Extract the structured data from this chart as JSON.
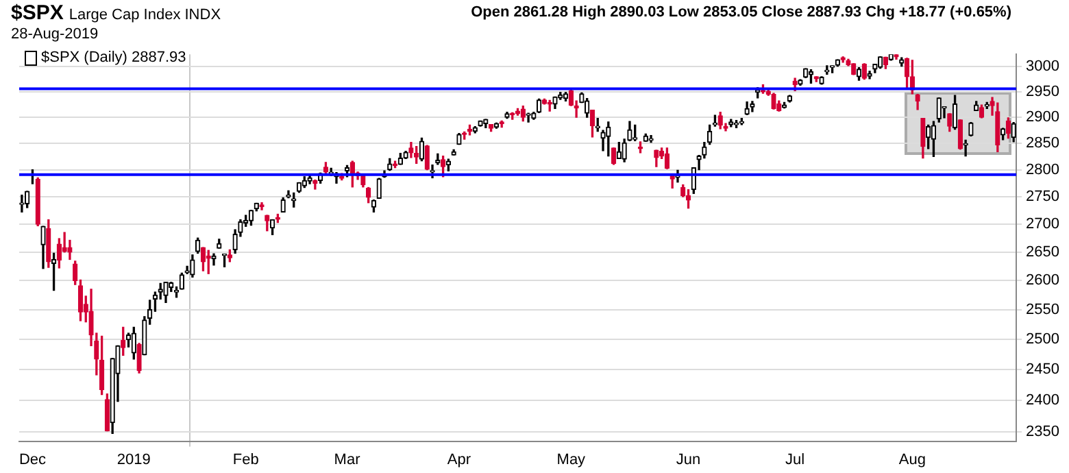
{
  "chart_data": {
    "type": "candlestick",
    "title": "$SPX",
    "subtitle": "Large Cap Index INDX",
    "annotations": [
      "28-Aug-2019",
      "Open 2861.28 High 2890.03 Low 2853.05 Close 2887.93 Chg +18.77 (+0.65%)"
    ],
    "categories": [
      null,
      null,
      "Dec",
      null,
      null,
      null,
      null,
      null,
      null,
      null,
      null,
      null,
      null,
      null,
      null,
      null,
      null,
      null,
      null,
      null,
      null,
      "2019",
      null,
      null,
      null,
      null,
      null,
      null,
      null,
      null,
      null,
      null,
      null,
      null,
      null,
      null,
      null,
      null,
      null,
      null,
      null,
      null,
      "Feb",
      null,
      null,
      null,
      null,
      null,
      null,
      null,
      null,
      null,
      null,
      null,
      null,
      null,
      null,
      null,
      null,
      null,
      null,
      "Mar",
      null,
      null,
      null,
      null,
      null,
      null,
      null,
      null,
      null,
      null,
      null,
      null,
      null,
      null,
      null,
      null,
      null,
      null,
      null,
      null,
      "Apr",
      null,
      null,
      null,
      null,
      null,
      null,
      null,
      null,
      null,
      null,
      null,
      null,
      null,
      null,
      null,
      null,
      null,
      null,
      null,
      null,
      "May",
      null,
      null,
      null,
      null,
      null,
      null,
      null,
      null,
      null,
      null,
      null,
      null,
      null,
      null,
      null,
      null,
      null,
      null,
      null,
      null,
      null,
      "Jun",
      null,
      null,
      null,
      null,
      null,
      null,
      null,
      null,
      null,
      null,
      null,
      null,
      null,
      null,
      null,
      null,
      null,
      null,
      null,
      "Jul",
      null,
      null,
      null,
      null,
      null,
      null,
      null,
      null,
      null,
      null,
      null,
      null,
      null,
      null,
      null,
      null,
      null,
      null,
      null,
      null,
      null,
      "Aug",
      null,
      null,
      null,
      null,
      null,
      null,
      null,
      null,
      null,
      null,
      null,
      null,
      null,
      null,
      null,
      null,
      null,
      null,
      null
    ],
    "series": [
      {
        "name": "$SPX (Daily) 2887.93",
        "colors": [
          "#000000",
          "#000000",
          "#000000",
          "#d40036",
          "#000000",
          "#d40036",
          "#000000",
          "#d40036",
          "#d40036",
          "#d40036",
          "#d40036",
          "#d40036",
          "#d40036",
          "#d40036",
          "#d40036",
          "#d40036",
          "#d40036",
          "#000000",
          "#000000",
          "#d40036",
          "#000000",
          "#000000",
          "#d40036",
          "#000000",
          "#000000",
          "#000000",
          "#000000",
          "#000000",
          "#000000",
          "#000000",
          "#000000",
          "#000000",
          "#000000",
          "#000000",
          "#d40036",
          "#d40036",
          "#000000",
          "#000000",
          "#000000",
          "#d40036",
          "#000000",
          "#000000",
          "#000000",
          "#000000",
          "#000000",
          "#d40036",
          "#d40036",
          "#000000",
          "#d40036",
          "#000000",
          "#000000",
          "#000000",
          "#000000",
          "#000000",
          "#000000",
          "#d40036",
          "#000000",
          "#d40036",
          "#000000",
          "#000000",
          "#d40036",
          "#000000",
          "#d40036",
          "#d40036",
          "#d40036",
          "#d40036",
          "#000000",
          "#000000",
          "#000000",
          "#000000",
          "#d40036",
          "#000000",
          "#000000",
          "#d40036",
          "#d40036",
          "#000000",
          "#d40036",
          "#000000",
          "#000000",
          "#d40036",
          "#000000",
          "#000000",
          "#000000",
          "#d40036",
          "#d40036",
          "#000000",
          "#000000",
          "#000000",
          "#d40036",
          "#000000",
          "#d40036",
          "#000000",
          "#d40036",
          "#d40036",
          "#d40036",
          "#000000",
          "#000000",
          "#000000",
          "#d40036",
          "#d40036",
          "#000000",
          "#000000",
          "#000000",
          "#d40036",
          "#d40036",
          "#000000",
          "#000000",
          "#d40036",
          "#000000",
          "#000000",
          "#000000",
          "#d40036",
          "#000000",
          "#000000",
          "#000000",
          "#000000",
          "#d40036",
          "#000000",
          "#000000",
          "#d40036",
          "#d40036",
          "#d40036",
          "#d40036",
          "#000000",
          "#d40036",
          "#d40036",
          "#000000",
          "#000000",
          "#000000",
          "#000000",
          "#000000",
          "#d40036",
          "#d40036",
          "#000000",
          "#000000",
          "#000000",
          "#000000",
          "#000000",
          "#000000",
          "#d40036",
          "#d40036",
          "#d40036",
          "#d40036",
          "#000000",
          "#000000",
          "#d40036",
          "#000000",
          "#000000",
          "#000000",
          "#d40036",
          "#000000",
          "#000000",
          "#000000",
          "#000000",
          "#d40036",
          "#d40036",
          "#d40036",
          "#000000",
          "#d40036",
          "#000000",
          "#000000",
          "#000000",
          "#d40036",
          "#000000",
          "#d40036",
          "#000000",
          "#d40036",
          "#d40036",
          "#d40036",
          "#d40036",
          "#000000",
          "#000000",
          "#000000",
          "#000000",
          "#d40036",
          "#000000",
          "#d40036",
          "#000000",
          "#000000",
          "#000000",
          "#d40036",
          "#000000",
          "#d40036",
          "#d40036",
          "#000000",
          "#d40036",
          "#000000"
        ],
        "ohlc": [
          [
            2736,
            2753,
            2722,
            2738
          ],
          [
            2737,
            2760,
            2730,
            2760
          ],
          [
            2790,
            2800,
            2774,
            2790
          ],
          [
            2782,
            2785,
            2697,
            2700
          ],
          [
            2663,
            2696,
            2621,
            2696
          ],
          [
            2692,
            2708,
            2623,
            2633
          ],
          [
            2630,
            2648,
            2583,
            2637
          ],
          [
            2664,
            2674,
            2622,
            2636
          ],
          [
            2658,
            2685,
            2650,
            2651
          ],
          [
            2658,
            2671,
            2637,
            2650
          ],
          [
            2629,
            2634,
            2593,
            2600
          ],
          [
            2591,
            2601,
            2531,
            2546
          ],
          [
            2559,
            2573,
            2529,
            2546
          ],
          [
            2547,
            2585,
            2489,
            2507
          ],
          [
            2497,
            2510,
            2441,
            2467
          ],
          [
            2465,
            2505,
            2409,
            2417
          ],
          [
            2401,
            2410,
            2351,
            2351
          ],
          [
            2364,
            2468,
            2347,
            2468
          ],
          [
            2443,
            2489,
            2398,
            2489
          ],
          [
            2498,
            2520,
            2473,
            2486
          ],
          [
            2499,
            2510,
            2487,
            2507
          ],
          [
            2477,
            2520,
            2467,
            2510
          ],
          [
            2491,
            2493,
            2444,
            2448
          ],
          [
            2474,
            2538,
            2474,
            2532
          ],
          [
            2535,
            2566,
            2525,
            2550
          ],
          [
            2568,
            2580,
            2547,
            2575
          ],
          [
            2580,
            2595,
            2568,
            2585
          ],
          [
            2574,
            2597,
            2562,
            2597
          ],
          [
            2588,
            2597,
            2581,
            2596
          ],
          [
            2580,
            2589,
            2571,
            2583
          ],
          [
            2585,
            2613,
            2585,
            2610
          ],
          [
            2614,
            2625,
            2612,
            2617
          ],
          [
            2610,
            2645,
            2606,
            2636
          ],
          [
            2651,
            2675,
            2648,
            2671
          ],
          [
            2658,
            2658,
            2617,
            2633
          ],
          [
            2643,
            2653,
            2612,
            2639
          ],
          [
            2638,
            2647,
            2627,
            2643
          ],
          [
            2657,
            2673,
            2657,
            2665
          ],
          [
            2644,
            2644,
            2624,
            2644
          ],
          [
            2645,
            2654,
            2633,
            2640
          ],
          [
            2654,
            2690,
            2648,
            2682
          ],
          [
            2685,
            2708,
            2678,
            2704
          ],
          [
            2702,
            2716,
            2696,
            2707
          ],
          [
            2706,
            2725,
            2698,
            2725
          ],
          [
            2728,
            2738,
            2724,
            2738
          ],
          [
            2735,
            2739,
            2726,
            2732
          ],
          [
            2716,
            2716,
            2688,
            2706
          ],
          [
            2693,
            2708,
            2681,
            2708
          ],
          [
            2712,
            2718,
            2703,
            2709
          ],
          [
            2722,
            2748,
            2722,
            2744
          ],
          [
            2750,
            2761,
            2748,
            2753
          ],
          [
            2743,
            2757,
            2731,
            2746
          ],
          [
            2760,
            2776,
            2758,
            2776
          ],
          [
            2770,
            2787,
            2767,
            2780
          ],
          [
            2779,
            2789,
            2774,
            2785
          ],
          [
            2780,
            2781,
            2764,
            2775
          ],
          [
            2780,
            2794,
            2775,
            2793
          ],
          [
            2805,
            2814,
            2794,
            2796
          ],
          [
            2793,
            2803,
            2789,
            2794
          ],
          [
            2787,
            2795,
            2775,
            2793
          ],
          [
            2788,
            2793,
            2781,
            2784
          ],
          [
            2798,
            2808,
            2787,
            2804
          ],
          [
            2814,
            2816,
            2768,
            2792
          ],
          [
            2794,
            2796,
            2782,
            2789
          ],
          [
            2791,
            2791,
            2768,
            2772
          ],
          [
            2766,
            2767,
            2739,
            2749
          ],
          [
            2731,
            2744,
            2722,
            2743
          ],
          [
            2747,
            2784,
            2747,
            2783
          ],
          [
            2787,
            2798,
            2786,
            2792
          ],
          [
            2800,
            2821,
            2799,
            2811
          ],
          [
            2811,
            2816,
            2804,
            2808
          ],
          [
            2810,
            2831,
            2810,
            2822
          ],
          [
            2822,
            2835,
            2821,
            2833
          ],
          [
            2841,
            2852,
            2823,
            2832
          ],
          [
            2831,
            2844,
            2812,
            2824
          ],
          [
            2820,
            2860,
            2817,
            2854
          ],
          [
            2845,
            2846,
            2800,
            2801
          ],
          [
            2796,
            2809,
            2785,
            2798
          ],
          [
            2813,
            2830,
            2810,
            2818
          ],
          [
            2819,
            2826,
            2787,
            2806
          ],
          [
            2809,
            2820,
            2798,
            2816
          ],
          [
            2828,
            2838,
            2828,
            2834
          ],
          [
            2848,
            2869,
            2848,
            2867
          ],
          [
            2868,
            2872,
            2858,
            2867
          ],
          [
            2877,
            2885,
            2866,
            2873
          ],
          [
            2873,
            2882,
            2870,
            2880
          ],
          [
            2884,
            2893,
            2883,
            2893
          ],
          [
            2888,
            2896,
            2880,
            2896
          ],
          [
            2886,
            2886,
            2873,
            2879
          ],
          [
            2881,
            2889,
            2879,
            2888
          ],
          [
            2891,
            2893,
            2881,
            2888
          ],
          [
            2900,
            2910,
            2898,
            2907
          ],
          [
            2908,
            2909,
            2896,
            2905
          ],
          [
            2912,
            2917,
            2904,
            2907
          ],
          [
            2916,
            2922,
            2893,
            2900
          ],
          [
            2904,
            2908,
            2891,
            2905
          ],
          [
            2898,
            2910,
            2896,
            2908
          ],
          [
            2910,
            2936,
            2909,
            2934
          ],
          [
            2934,
            2936,
            2926,
            2927
          ],
          [
            2929,
            2933,
            2912,
            2926
          ],
          [
            2926,
            2940,
            2917,
            2940
          ],
          [
            2938,
            2949,
            2935,
            2944
          ],
          [
            2937,
            2949,
            2932,
            2946
          ],
          [
            2952,
            2954,
            2923,
            2924
          ],
          [
            2922,
            2932,
            2900,
            2918
          ],
          [
            2929,
            2948,
            2929,
            2946
          ],
          [
            2908,
            2937,
            2900,
            2932
          ],
          [
            2914,
            2914,
            2862,
            2884
          ],
          [
            2880,
            2898,
            2873,
            2880
          ],
          [
            2860,
            2875,
            2836,
            2871
          ],
          [
            2863,
            2891,
            2826,
            2881
          ],
          [
            2841,
            2841,
            2810,
            2812
          ],
          [
            2821,
            2852,
            2821,
            2834
          ],
          [
            2820,
            2858,
            2815,
            2851
          ],
          [
            2856,
            2892,
            2855,
            2876
          ],
          [
            2858,
            2885,
            2855,
            2860
          ],
          [
            2841,
            2853,
            2832,
            2840
          ],
          [
            2854,
            2868,
            2854,
            2864
          ],
          [
            2856,
            2865,
            2852,
            2856
          ],
          [
            2837,
            2837,
            2806,
            2823
          ],
          [
            2835,
            2841,
            2821,
            2826
          ],
          [
            2830,
            2841,
            2802,
            2803
          ],
          [
            2790,
            2792,
            2766,
            2783
          ],
          [
            2786,
            2799,
            2777,
            2789
          ],
          [
            2767,
            2772,
            2750,
            2752
          ],
          [
            2752,
            2763,
            2729,
            2744
          ],
          [
            2763,
            2804,
            2756,
            2804
          ],
          [
            2819,
            2827,
            2800,
            2826
          ],
          [
            2828,
            2852,
            2822,
            2843
          ],
          [
            2852,
            2885,
            2848,
            2873
          ],
          [
            2886,
            2904,
            2883,
            2886
          ],
          [
            2903,
            2910,
            2878,
            2885
          ],
          [
            2882,
            2888,
            2874,
            2879
          ],
          [
            2886,
            2896,
            2882,
            2891
          ],
          [
            2886,
            2894,
            2880,
            2887
          ],
          [
            2889,
            2898,
            2886,
            2890
          ],
          [
            2906,
            2930,
            2905,
            2917
          ],
          [
            2920,
            2931,
            2911,
            2926
          ],
          [
            2949,
            2958,
            2938,
            2954
          ],
          [
            2952,
            2964,
            2947,
            2950
          ],
          [
            2951,
            2955,
            2943,
            2945
          ],
          [
            2945,
            2947,
            2916,
            2917
          ],
          [
            2926,
            2932,
            2912,
            2913
          ],
          [
            2919,
            2929,
            2918,
            2924
          ],
          [
            2932,
            2943,
            2930,
            2942
          ],
          [
            2971,
            2977,
            2952,
            2964
          ],
          [
            2965,
            2974,
            2963,
            2973
          ],
          [
            2979,
            2996,
            2978,
            2996
          ],
          [
            2984,
            2994,
            2967,
            2990
          ],
          [
            2980,
            2980,
            2970,
            2976
          ],
          [
            2966,
            2980,
            2965,
            2979
          ],
          [
            2990,
            3002,
            2985,
            2993
          ],
          [
            2999,
            3002,
            2988,
            3000
          ],
          [
            3003,
            3014,
            3001,
            3014
          ],
          [
            3018,
            3020,
            3009,
            3014
          ],
          [
            3012,
            3015,
            3002,
            3004
          ],
          [
            3006,
            3006,
            2984,
            2985
          ],
          [
            2980,
            2998,
            2973,
            2995
          ],
          [
            3005,
            3006,
            2975,
            2977
          ],
          [
            2981,
            2991,
            2976,
            2986
          ],
          [
            2995,
            3005,
            2988,
            3005
          ],
          [
            2999,
            3020,
            2997,
            3020
          ],
          [
            3019,
            3019,
            2996,
            3004
          ],
          [
            3014,
            3027,
            3013,
            3026
          ],
          [
            3024,
            3025,
            3015,
            3020
          ],
          [
            3007,
            3018,
            3001,
            3014
          ],
          [
            3016,
            3017,
            2959,
            2980
          ],
          [
            2980,
            3013,
            2946,
            2954
          ],
          [
            2944,
            2945,
            2915,
            2932
          ],
          [
            2898,
            2898,
            2822,
            2844
          ],
          [
            2861,
            2885,
            2840,
            2882
          ],
          [
            2858,
            2892,
            2825,
            2884
          ],
          [
            2897,
            2938,
            2891,
            2938
          ],
          [
            2918,
            2919,
            2899,
            2919
          ],
          [
            2907,
            2907,
            2873,
            2883
          ],
          [
            2880,
            2943,
            2877,
            2926
          ],
          [
            2895,
            2895,
            2839,
            2840
          ],
          [
            2847,
            2856,
            2826,
            2848
          ],
          [
            2865,
            2890,
            2864,
            2889
          ],
          [
            2913,
            2931,
            2913,
            2924
          ],
          [
            2919,
            2924,
            2899,
            2900
          ],
          [
            2922,
            2929,
            2917,
            2924
          ],
          [
            2931,
            2939,
            2904,
            2923
          ],
          [
            2911,
            2928,
            2834,
            2847
          ],
          [
            2866,
            2879,
            2857,
            2878
          ],
          [
            2893,
            2899,
            2860,
            2869
          ],
          [
            2861.28,
            2890.03,
            2853.05,
            2887.93
          ]
        ]
      }
    ],
    "log": true,
    "ylim": [
      2335,
      3025
    ],
    "yticks": [
      2350,
      2400,
      2450,
      2500,
      2550,
      2600,
      2650,
      2700,
      2750,
      2800,
      2850,
      2900,
      2950,
      3000
    ],
    "grid": true,
    "legend": "top left",
    "ref_lines": [
      {
        "axis": "y",
        "value": 2956,
        "color": "#0000ff"
      },
      {
        "axis": "y",
        "value": 2791,
        "color": "#0000ff"
      }
    ]
  }
}
